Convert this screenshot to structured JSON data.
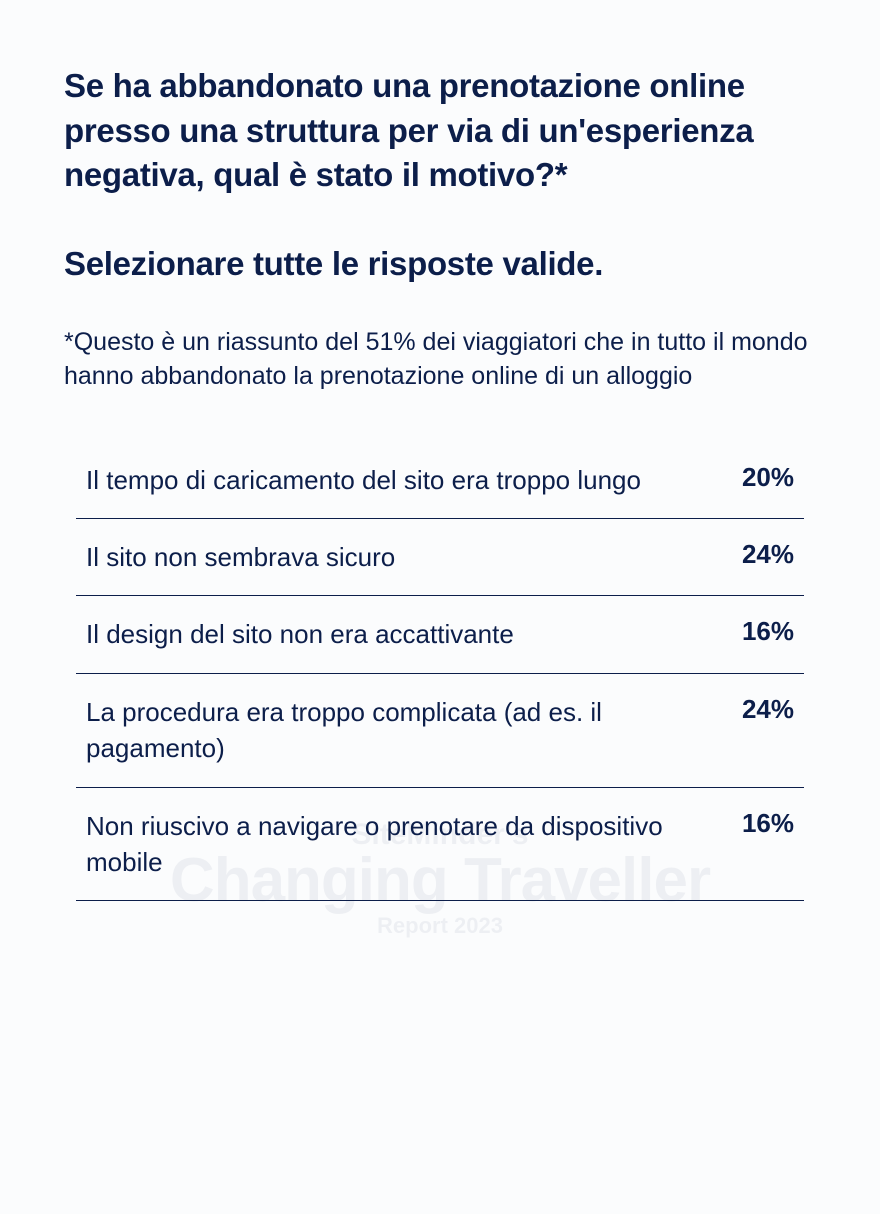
{
  "colors": {
    "background": "#fbfcfd",
    "text": "#0c1e4a",
    "divider": "#0c1e4a"
  },
  "typography": {
    "heading_fontsize": 33,
    "heading_fontweight": 700,
    "footnote_fontsize": 25,
    "footnote_fontweight": 400,
    "row_label_fontsize": 26,
    "row_label_fontweight": 400,
    "row_value_fontsize": 26,
    "row_value_fontweight": 700
  },
  "question": "Se ha abbandonato una prenotazione online presso una struttura per via di un'esperienza negativa, qual è stato il motivo?*",
  "instruction": "Selezionare tutte le risposte valide.",
  "footnote": "*Questo è un riassunto del 51% dei viaggiatori che in tutto il mondo hanno abbandonato la prenotazione online di un alloggio",
  "table": {
    "type": "table",
    "rows": [
      {
        "label": "Il tempo di caricamento del sito era troppo lungo",
        "value": "20%"
      },
      {
        "label": "Il sito non sembrava sicuro",
        "value": "24%"
      },
      {
        "label": "Il design del sito non era accattivante",
        "value": "16%"
      },
      {
        "label": "La procedura era troppo complicata (ad es. il pagamento)",
        "value": "24%"
      },
      {
        "label": "Non riuscivo a navigare o prenotare da dispositivo mobile",
        "value": "16%"
      }
    ]
  },
  "watermark": {
    "line1": "SiteMinder's",
    "line2": "Changing Traveller",
    "line3": "Report 2023"
  }
}
